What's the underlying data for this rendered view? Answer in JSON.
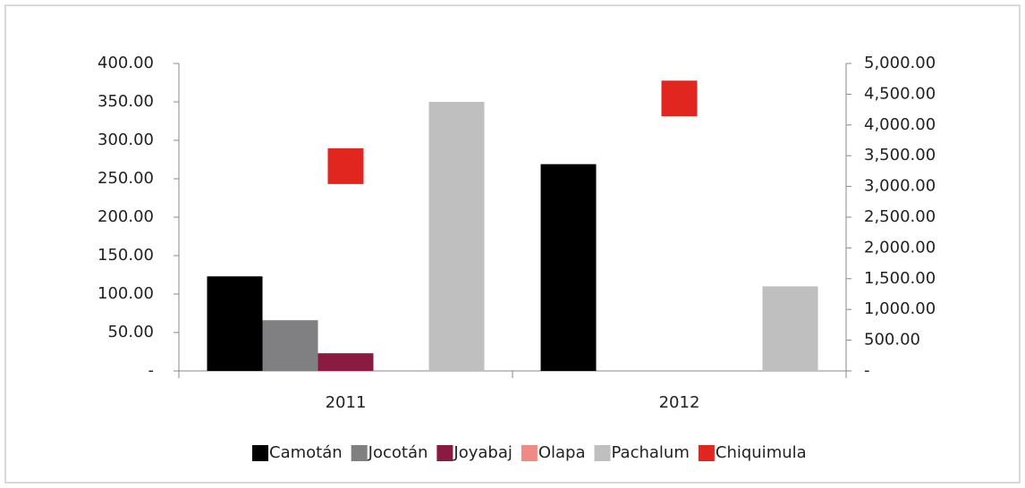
{
  "chart_data": {
    "type": "bar",
    "categories": [
      "2011",
      "2012"
    ],
    "series": [
      {
        "name": "Camotán",
        "color": "#000000",
        "values": [
          123,
          269
        ]
      },
      {
        "name": "Jocotán",
        "color": "#808083",
        "values": [
          66,
          0
        ]
      },
      {
        "name": "Joyabaj",
        "color": "#8b1a40",
        "values": [
          23,
          0
        ]
      },
      {
        "name": "Olapa",
        "color": "#f08a84",
        "values": [
          0,
          0
        ]
      },
      {
        "name": "Pachalum",
        "color": "#bfbfbf",
        "values": [
          350,
          110
        ]
      },
      {
        "name": "Chiquimula",
        "color": "#e0261e",
        "axis": "y2",
        "marker": "square",
        "values": [
          3330,
          4430
        ]
      }
    ],
    "ylim": [
      0,
      400
    ],
    "yticks": [
      {
        "value": 0,
        "label": "-"
      },
      {
        "value": 50,
        "label": "50.00"
      },
      {
        "value": 100,
        "label": "100.00"
      },
      {
        "value": 150,
        "label": "150.00"
      },
      {
        "value": 200,
        "label": "200.00"
      },
      {
        "value": 250,
        "label": "250.00"
      },
      {
        "value": 300,
        "label": "300.00"
      },
      {
        "value": 350,
        "label": "350.00"
      },
      {
        "value": 400,
        "label": "400.00"
      }
    ],
    "y2lim": [
      0,
      5000
    ],
    "y2ticks": [
      {
        "value": 0,
        "label": "-"
      },
      {
        "value": 500,
        "label": "500.00"
      },
      {
        "value": 1000,
        "label": "1,000.00"
      },
      {
        "value": 1500,
        "label": "1,500.00"
      },
      {
        "value": 2000,
        "label": "2,000.00"
      },
      {
        "value": 2500,
        "label": "2,500.00"
      },
      {
        "value": 3000,
        "label": "3,000.00"
      },
      {
        "value": 3500,
        "label": "3,500.00"
      },
      {
        "value": 4000,
        "label": "4,000.00"
      },
      {
        "value": 4500,
        "label": "4,500.00"
      },
      {
        "value": 5000,
        "label": "5,000.00"
      }
    ],
    "legend": "bottom"
  }
}
